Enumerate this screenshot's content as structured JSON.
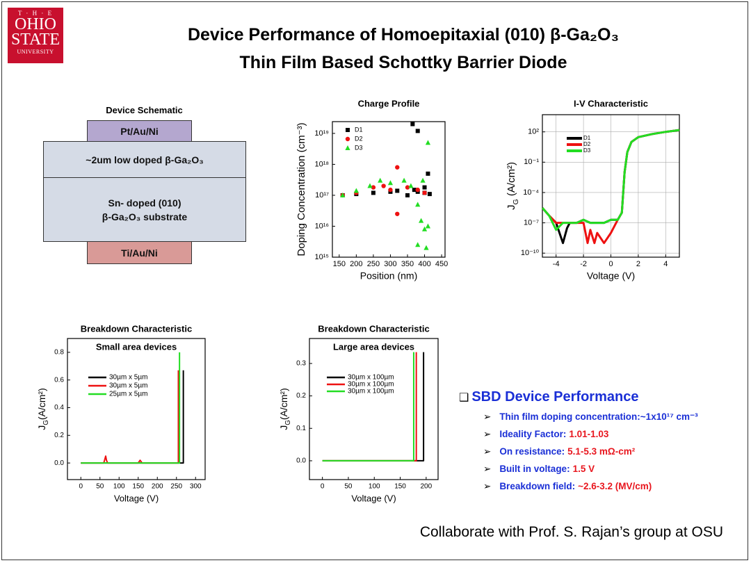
{
  "logo": {
    "lines": [
      "T · H · E",
      "OHIO",
      "STATE",
      "UNIVERSITY"
    ]
  },
  "header": {
    "title_lines": [
      "Device Performance of Homoepitaxial (010) β-Ga₂O₃",
      "Thin Film Based Schottky Barrier Diode"
    ]
  },
  "schematic": {
    "title": "Device Schematic",
    "layers": [
      [
        "Pt/Au/Ni"
      ],
      [
        "~2um low doped β-Ga₂O₃"
      ],
      [
        "Sn- doped (010)",
        "β-Ga₂O₃ substrate"
      ],
      [
        "Ti/Au/Ni"
      ]
    ]
  },
  "chart_data": [
    {
      "type": "scatter",
      "title": "Charge Profile",
      "xlabel": "Position (nm)",
      "ylabel": "Doping Concentration (cm⁻³)",
      "xlim": [
        130,
        460
      ],
      "xticks": [
        150,
        200,
        250,
        300,
        350,
        400,
        450
      ],
      "ylim": [
        1000000000000000.0,
        2.4e+19
      ],
      "ylog": true,
      "yticks": [
        {
          "value": 1000000000000000.0,
          "label": "10¹⁵"
        },
        {
          "value": 1e+16,
          "label": "10¹⁶"
        },
        {
          "value": 1e+17,
          "label": "10¹⁷"
        },
        {
          "value": 1e+18,
          "label": "10¹⁸"
        },
        {
          "value": 1e+19,
          "label": "10¹⁹"
        }
      ],
      "grid": false,
      "legend": "upper left",
      "series": [
        {
          "name": "D1",
          "color": "#000000",
          "marker": "square",
          "x": [
            160,
            200,
            250,
            300,
            320,
            350,
            365,
            370,
            380,
            380,
            400,
            400,
            410,
            415
          ],
          "values": [
            1e+17,
            1.1e+17,
            1.2e+17,
            1.3e+17,
            1.4e+17,
            1e+17,
            2e+19,
            1.5e+17,
            1.3e+17,
            1.2e+19,
            1.2e+17,
            1.8e+17,
            5e+17,
            1.1e+17
          ]
        },
        {
          "name": "D2",
          "color": "#ee1111",
          "marker": "circle",
          "x": [
            160,
            200,
            250,
            280,
            300,
            320,
            320,
            350,
            380,
            400
          ],
          "values": [
            1e+17,
            1.2e+17,
            1.8e+17,
            2e+17,
            1.5e+17,
            8e+17,
            2.5e+16,
            1.8e+17,
            1.5e+17,
            1.2e+17
          ]
        },
        {
          "name": "D3",
          "color": "#22dd22",
          "marker": "triangle",
          "x": [
            160,
            200,
            240,
            270,
            300,
            340,
            360,
            380,
            380,
            390,
            395,
            400,
            405,
            410,
            410
          ],
          "values": [
            1e+17,
            1.4e+17,
            2e+17,
            3e+17,
            2.5e+17,
            3e+17,
            2e+17,
            5e+16,
            2500000000000000.0,
            1.5e+16,
            3e+17,
            8000000000000000.0,
            2000000000000000.0,
            1e+16,
            5e+18
          ]
        }
      ]
    },
    {
      "type": "line",
      "title": "I-V Characteristic",
      "xlabel": "Voltage (V)",
      "ylabel": [
        "J",
        "G",
        " (A/cm²)"
      ],
      "xlim": [
        -5,
        5
      ],
      "xticks": [
        -4,
        -2,
        0,
        2,
        4
      ],
      "ylim": [
        4e-11,
        5000.0
      ],
      "ylog": true,
      "yticks": [
        {
          "value": 1e-10,
          "label": "10⁻¹⁰"
        },
        {
          "value": 1e-07,
          "label": "10⁻⁷"
        },
        {
          "value": 0.0001,
          "label": "10⁻⁴"
        },
        {
          "value": 0.1,
          "label": "10⁻¹"
        },
        {
          "value": 100,
          "label": "10²"
        }
      ],
      "grid": true,
      "legend": "upper left",
      "series": [
        {
          "name": "D1",
          "color": "#000000",
          "x": [
            -5,
            -4.5,
            -4,
            -3.5,
            -3.2,
            -3,
            -2.5,
            -2,
            -1.5,
            -1,
            -0.5,
            0,
            0.5,
            0.8,
            1,
            1.2,
            1.5,
            2,
            3,
            4,
            5
          ],
          "values": [
            3e-06,
            5e-07,
            1e-07,
            1e-09,
            3e-08,
            1e-07,
            1e-07,
            2e-07,
            1e-07,
            1e-07,
            1e-07,
            2e-07,
            2e-07,
            1e-06,
            0.01,
            1,
            10,
            30,
            60,
            100,
            150
          ]
        },
        {
          "name": "D2",
          "color": "#ee1111",
          "x": [
            -5,
            -4.5,
            -4,
            -3.5,
            -3,
            -2.5,
            -2,
            -1.7,
            -1.5,
            -1.2,
            -1,
            -0.5,
            0,
            0.5,
            0.8,
            1,
            1.2,
            1.5,
            2,
            3,
            4,
            5
          ],
          "values": [
            3e-06,
            5e-07,
            1e-07,
            1e-07,
            1e-07,
            1e-07,
            1e-07,
            1e-09,
            2e-08,
            1e-09,
            1e-08,
            1e-09,
            1e-08,
            2e-07,
            1e-06,
            0.01,
            1,
            10,
            30,
            60,
            100,
            150
          ]
        },
        {
          "name": "D3",
          "color": "#22dd22",
          "x": [
            -5,
            -4.5,
            -4,
            -3.5,
            -3,
            -2.5,
            -2,
            -1.5,
            -1,
            -0.5,
            0,
            0.5,
            0.8,
            1,
            1.2,
            1.5,
            2,
            3,
            4,
            5
          ],
          "values": [
            3e-06,
            5e-07,
            2e-08,
            1e-07,
            1e-07,
            1e-07,
            2e-07,
            1e-07,
            1e-07,
            1e-07,
            2e-07,
            2e-07,
            1e-06,
            0.01,
            1,
            10,
            30,
            60,
            100,
            150
          ]
        }
      ]
    },
    {
      "type": "line",
      "title": "Breakdown Characteristic",
      "subtitle": "Small area devices",
      "xlabel": "Voltage (V)",
      "ylabel": [
        "J",
        "G",
        "(A/cm²)"
      ],
      "xlim": [
        -35,
        325
      ],
      "xticks": [
        0,
        50,
        100,
        150,
        200,
        250,
        300
      ],
      "ylim": [
        -0.12,
        0.9
      ],
      "yticks": [
        {
          "value": 0,
          "label": "0.0"
        },
        {
          "value": 0.2,
          "label": "0.2"
        },
        {
          "value": 0.4,
          "label": "0.4"
        },
        {
          "value": 0.6,
          "label": "0.6"
        },
        {
          "value": 0.8,
          "label": "0.8"
        }
      ],
      "grid": false,
      "legend": "upper left",
      "series": [
        {
          "name": "30µm x 5µm",
          "color": "#000000",
          "x": [
            0,
            265,
            268,
            268
          ],
          "values": [
            0,
            0,
            0,
            0.67
          ]
        },
        {
          "name": "30µm x 5µm",
          "color": "#ee1111",
          "x": [
            0,
            60,
            65,
            67,
            70,
            150,
            155,
            160,
            250,
            255,
            255
          ],
          "values": [
            0,
            0,
            0.05,
            0.02,
            0,
            0,
            0.02,
            0,
            0,
            0,
            0.67
          ]
        },
        {
          "name": "25µm x 5µm",
          "color": "#22dd22",
          "x": [
            0,
            250,
            258,
            258
          ],
          "values": [
            0,
            0,
            0,
            0.8
          ]
        }
      ]
    },
    {
      "type": "line",
      "title": "Breakdown Characteristic",
      "subtitle": "Large area devices",
      "xlabel": "Voltage (V)",
      "ylabel": [
        "J",
        "G",
        "(A/cm²)"
      ],
      "xlim": [
        -25,
        223
      ],
      "xticks": [
        0,
        50,
        100,
        150,
        200
      ],
      "ylim": [
        -0.058,
        0.377
      ],
      "yticks": [
        {
          "value": 0,
          "label": "0.0"
        },
        {
          "value": 0.1,
          "label": "0.1"
        },
        {
          "value": 0.2,
          "label": "0.2"
        },
        {
          "value": 0.3,
          "label": "0.3"
        }
      ],
      "grid": false,
      "legend": "upper left",
      "series": [
        {
          "name": "30µm x 100µm",
          "color": "#000000",
          "x": [
            0,
            192,
            195,
            195
          ],
          "values": [
            0,
            0,
            0,
            0.335
          ]
        },
        {
          "name": "30µm x 100µm",
          "color": "#ee1111",
          "x": [
            0,
            178,
            181,
            181
          ],
          "values": [
            0,
            0,
            0,
            0.335
          ]
        },
        {
          "name": "30µm x 100µm",
          "color": "#22dd22",
          "x": [
            0,
            173,
            176,
            176
          ],
          "values": [
            0,
            0,
            0,
            0.335
          ]
        }
      ]
    }
  ],
  "performance": {
    "heading": "SBD Device Performance",
    "items": [
      {
        "label": "Thin film doping concentration:",
        "value": "~1x10¹⁷ cm⁻³"
      },
      {
        "label": "Ideality Factor:",
        "value": "1.01-1.03"
      },
      {
        "label": "On resistance:",
        "value": "5.1-5.3 mΩ-cm²"
      },
      {
        "label": "Built in voltage:",
        "value": "1.5 V"
      },
      {
        "label": "Breakdown field:",
        "value": "~2.6-3.2 (MV/cm)"
      }
    ]
  },
  "footer": "Collaborate with Prof. S. Rajan’s group at OSU"
}
